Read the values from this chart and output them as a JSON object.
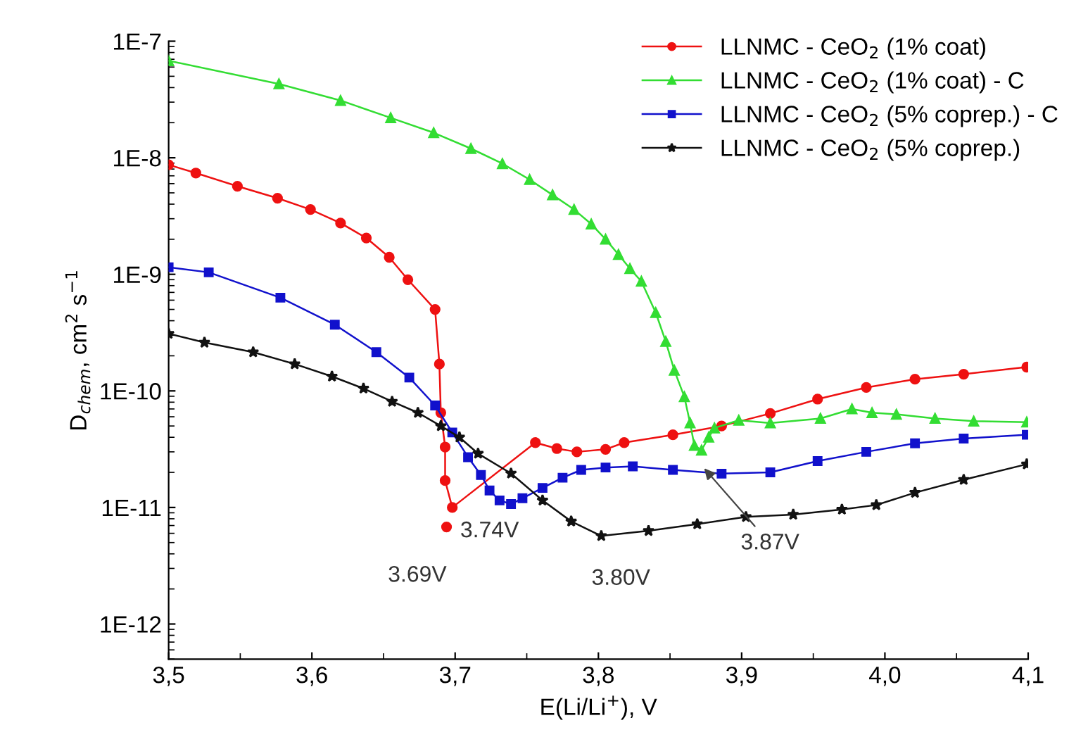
{
  "chart_data": {
    "type": "line",
    "xlabel": "E(Li/Li$^{+}$), V",
    "ylabel": "D$_{chem}$, cm$^{2}$ s$^{−1}$",
    "log": "y",
    "xlim": [
      3.5,
      4.1
    ],
    "ylim": [
      5e-13,
      1e-07
    ],
    "xticks": [
      {
        "value": 3.5,
        "label": "3,5"
      },
      {
        "value": 3.6,
        "label": "3,6"
      },
      {
        "value": 3.7,
        "label": "3,7"
      },
      {
        "value": 3.8,
        "label": "3,8"
      },
      {
        "value": 3.9,
        "label": "3,9"
      },
      {
        "value": 4.0,
        "label": "4,0"
      },
      {
        "value": 4.1,
        "label": "4,1"
      }
    ],
    "yticks": [
      {
        "value": 1e-12,
        "label": "1E-12"
      },
      {
        "value": 1e-11,
        "label": "1E-11"
      },
      {
        "value": 1e-10,
        "label": "1E-10"
      },
      {
        "value": 1e-09,
        "label": "1E-9"
      },
      {
        "value": 1e-08,
        "label": "1E-8"
      },
      {
        "value": 1e-07,
        "label": "1E-7"
      }
    ],
    "grid": false,
    "legend": "top right",
    "line_style": "solid",
    "series": [
      {
        "name": "LLNMC - CeO$_{2}$ (1% coat)",
        "color": "#ee1111",
        "marker": "circle",
        "x": [
          3.5,
          3.519,
          3.548,
          3.576,
          3.599,
          3.62,
          3.638,
          3.654,
          3.667,
          3.686,
          3.689,
          3.69,
          3.693,
          3.693,
          3.698,
          3.756,
          3.771,
          3.785,
          3.805,
          3.818,
          3.852,
          3.886,
          3.92,
          3.953,
          3.987,
          4.021,
          4.055,
          4.099
        ],
        "values": [
          8.7e-09,
          7.4e-09,
          5.7e-09,
          4.5e-09,
          3.6e-09,
          2.75e-09,
          2.05e-09,
          1.4e-09,
          9e-10,
          5e-10,
          1.7e-10,
          6.5e-11,
          3.3e-11,
          1.7e-11,
          1e-11,
          3.6e-11,
          3.2e-11,
          3e-11,
          3.15e-11,
          3.6e-11,
          4.2e-11,
          5e-11,
          6.4e-11,
          8.5e-11,
          1.07e-10,
          1.26e-10,
          1.39e-10,
          1.6e-10
        ]
      },
      {
        "name": "LLNMC - CeO$_{2}$ (1% coat) - C",
        "color": "#33dd33",
        "marker": "triangle",
        "x": [
          3.5,
          3.577,
          3.62,
          3.655,
          3.685,
          3.711,
          3.733,
          3.752,
          3.768,
          3.783,
          3.795,
          3.805,
          3.814,
          3.822,
          3.83,
          3.84,
          3.847,
          3.853,
          3.86,
          3.864,
          3.867,
          3.872,
          3.877,
          3.881,
          3.898,
          3.92,
          3.955,
          3.977,
          3.991,
          4.008,
          4.035,
          4.062,
          4.099
        ],
        "values": [
          6.8e-08,
          4.3e-08,
          3.1e-08,
          2.2e-08,
          1.64e-08,
          1.2e-08,
          8.9e-09,
          6.5e-09,
          4.8e-09,
          3.6e-09,
          2.7e-09,
          2e-09,
          1.48e-09,
          1.12e-09,
          8.7e-10,
          4.7e-10,
          2.65e-10,
          1.5e-10,
          8.9e-11,
          5.3e-11,
          3.4e-11,
          3.1e-11,
          4e-11,
          4.8e-11,
          5.6e-11,
          5.3e-11,
          5.8e-11,
          7e-11,
          6.5e-11,
          6.3e-11,
          5.8e-11,
          5.5e-11,
          5.4e-11
        ]
      },
      {
        "name": "LLNMC - CeO$_{2}$ (5% coprep.) - C",
        "color": "#1111cc",
        "marker": "square",
        "x": [
          3.5,
          3.528,
          3.578,
          3.616,
          3.645,
          3.668,
          3.686,
          3.698,
          3.709,
          3.718,
          3.724,
          3.731,
          3.739,
          3.747,
          3.761,
          3.775,
          3.788,
          3.805,
          3.824,
          3.852,
          3.886,
          3.92,
          3.953,
          3.987,
          4.021,
          4.055,
          4.099
        ],
        "values": [
          1.15e-09,
          1.04e-09,
          6.3e-10,
          3.7e-10,
          2.15e-10,
          1.3e-10,
          7.5e-11,
          4.4e-11,
          2.7e-11,
          1.9e-11,
          1.4e-11,
          1.15e-11,
          1.07e-11,
          1.2e-11,
          1.47e-11,
          1.8e-11,
          2.1e-11,
          2.2e-11,
          2.25e-11,
          2.1e-11,
          1.95e-11,
          2e-11,
          2.5e-11,
          3e-11,
          3.55e-11,
          3.9e-11,
          4.2e-11
        ]
      },
      {
        "name": "LLNMC - CeO$_{2}$ (5% coprep.)",
        "color": "#111111",
        "marker": "star",
        "x": [
          3.5,
          3.525,
          3.559,
          3.588,
          3.614,
          3.636,
          3.656,
          3.674,
          3.69,
          3.703,
          3.716,
          3.739,
          3.761,
          3.781,
          3.802,
          3.835,
          3.869,
          3.903,
          3.936,
          3.97,
          3.994,
          4.021,
          4.055,
          4.099
        ],
        "values": [
          3.1e-10,
          2.6e-10,
          2.15e-10,
          1.7e-10,
          1.33e-10,
          1.05e-10,
          8.1e-11,
          6.5e-11,
          5e-11,
          4e-11,
          2.9e-11,
          1.96e-11,
          1.15e-11,
          7.6e-12,
          5.7e-12,
          6.3e-12,
          7.2e-12,
          8.3e-12,
          8.7e-12,
          9.6e-12,
          1.05e-11,
          1.34e-11,
          1.73e-11,
          2.35e-11
        ]
      },
      {
        "type": "scatter",
        "color": "#ee1111",
        "marker": "circle",
        "x": [
          3.694
        ],
        "values": [
          6.8e-12
        ]
      }
    ],
    "annotations": [
      {
        "text": "3.69V",
        "x": 3.694,
        "y": 6.8e-12
      },
      {
        "text": "3.74V",
        "x": 3.739,
        "y": 1.07e-11
      },
      {
        "text": "3.80V",
        "x": 3.802,
        "y": 5.7e-12
      },
      {
        "text": "3.87V",
        "x": 3.872,
        "y": 2.3e-11
      }
    ]
  }
}
